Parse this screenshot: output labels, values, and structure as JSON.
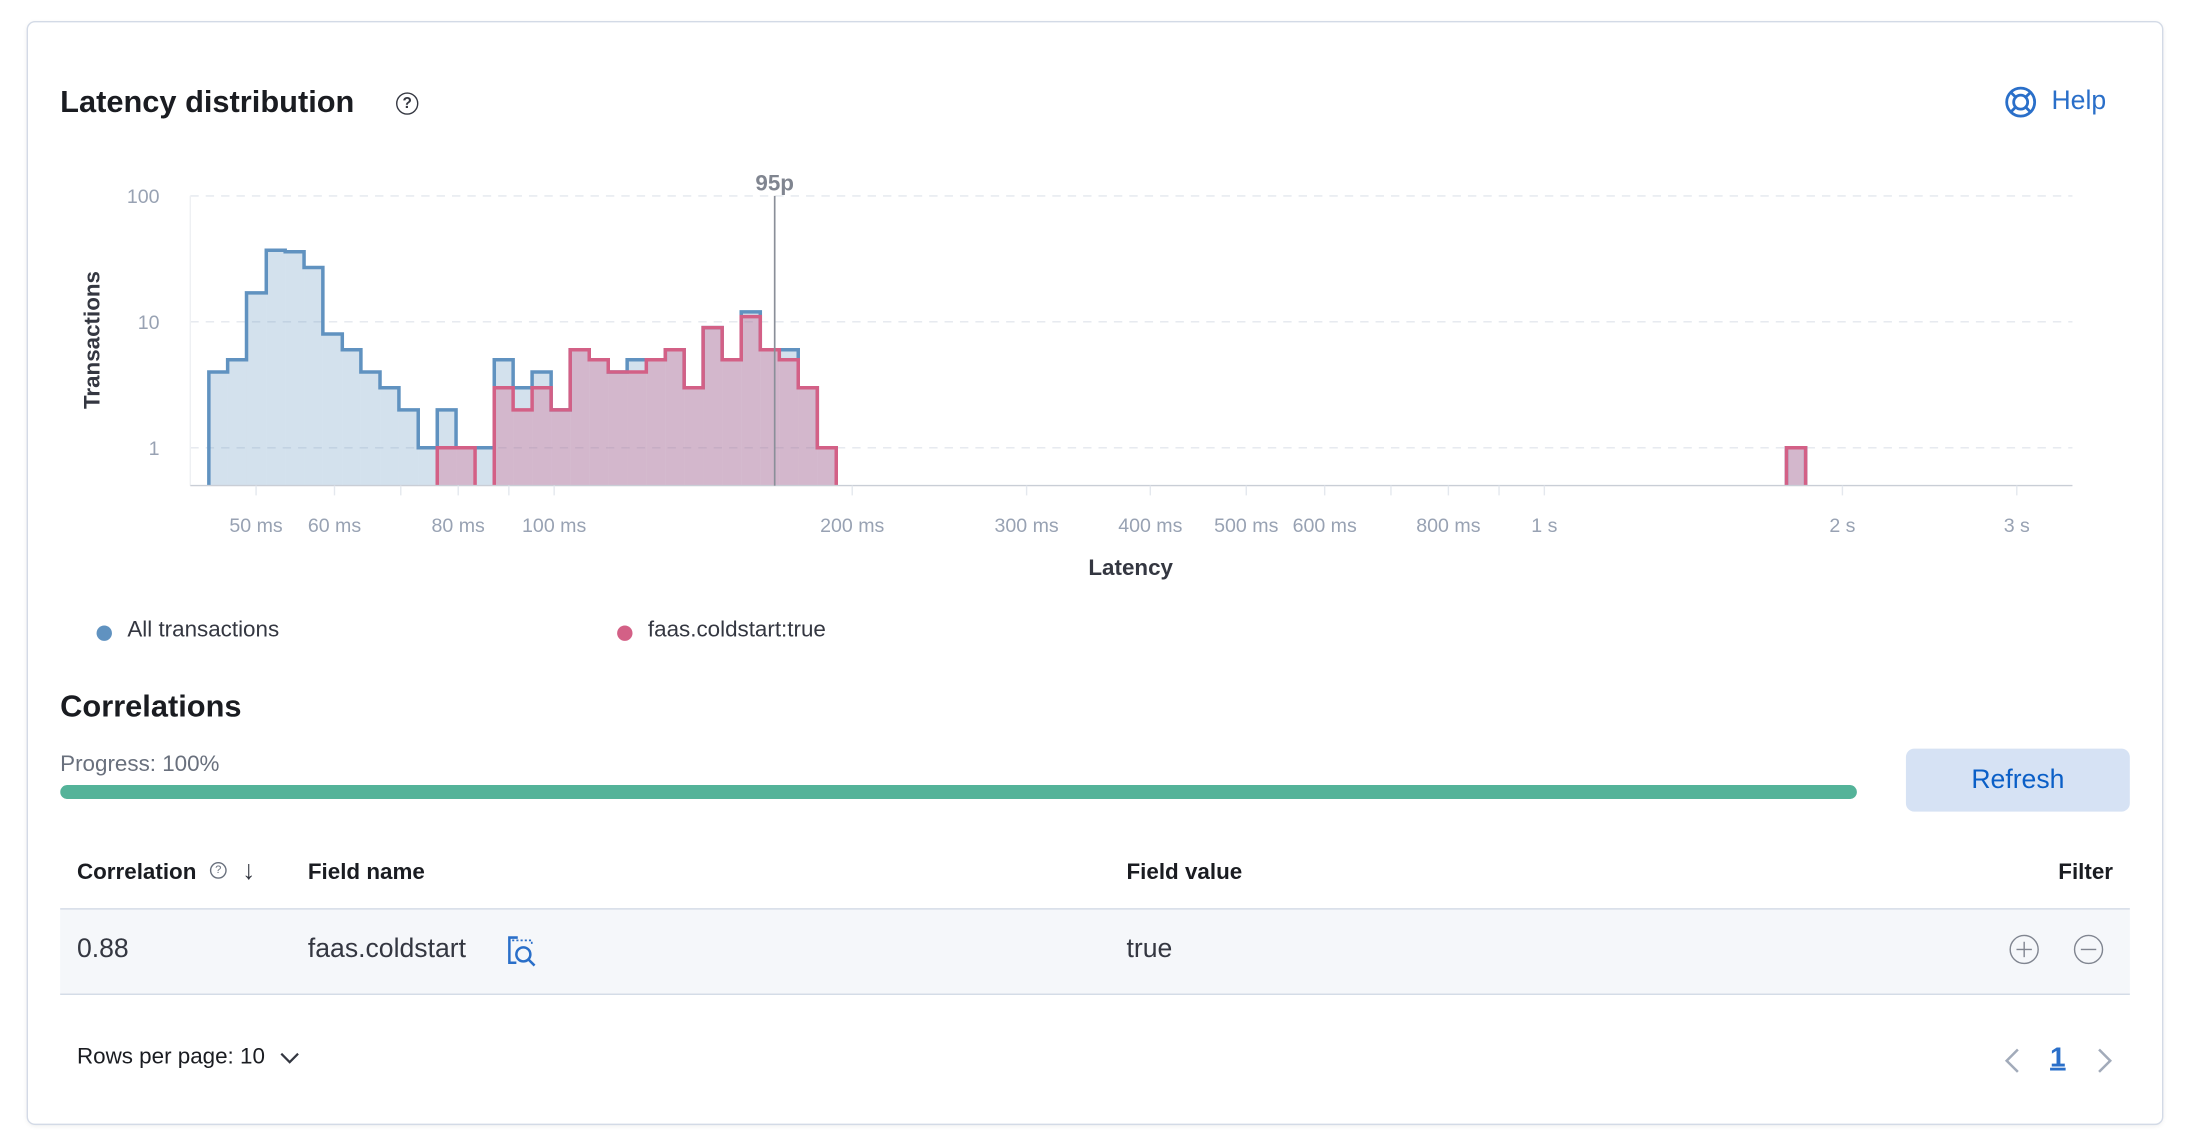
{
  "header": {
    "title": "Latency distribution",
    "help_label": "Help",
    "info_icon": "question-circle-icon",
    "help_icon": "lifebuoy-icon"
  },
  "chart_data": {
    "type": "histogram",
    "xlabel": "Latency",
    "ylabel": "Transactions",
    "x_scale": "log",
    "y_scale": "log",
    "xlim_ms": [
      42.7,
      3410
    ],
    "ylim": [
      0.5,
      100
    ],
    "grid": "horizontal dashed",
    "y_ticks": [
      {
        "value": 100,
        "label": "100"
      },
      {
        "value": 10,
        "label": "10"
      },
      {
        "value": 1,
        "label": "1"
      }
    ],
    "x_ticks": [
      {
        "value": 50,
        "label": "50 ms"
      },
      {
        "value": 60,
        "label": "60 ms"
      },
      {
        "value": 70,
        "label": ""
      },
      {
        "value": 80,
        "label": "80 ms"
      },
      {
        "value": 90,
        "label": ""
      },
      {
        "value": 100,
        "label": "100 ms"
      },
      {
        "value": 200,
        "label": "200 ms"
      },
      {
        "value": 300,
        "label": "300 ms"
      },
      {
        "value": 400,
        "label": "400 ms"
      },
      {
        "value": 500,
        "label": "500 ms"
      },
      {
        "value": 600,
        "label": "600 ms"
      },
      {
        "value": 700,
        "label": ""
      },
      {
        "value": 800,
        "label": "800 ms"
      },
      {
        "value": 900,
        "label": ""
      },
      {
        "value": 1000,
        "label": "1 s"
      },
      {
        "value": 2000,
        "label": "2 s"
      },
      {
        "value": 3000,
        "label": "3 s"
      }
    ],
    "annotation": {
      "label": "95p",
      "value_ms": 167
    },
    "legend_position": "bottom-left",
    "bin_edges_ms": [
      44.8,
      46.8,
      48.9,
      51.2,
      53.5,
      55.9,
      58.4,
      61.1,
      63.8,
      66.7,
      69.7,
      72.9,
      76.2,
      79.6,
      83.2,
      87.0,
      90.9,
      95.0,
      99.3,
      103.8,
      108.5,
      113.4,
      118.5,
      123.9,
      129.5,
      135.3,
      141.4,
      147.8,
      154.5,
      161.5,
      168.8,
      176.4,
      184.4,
      192.7
    ],
    "series": [
      {
        "name": "All transactions",
        "color": "#6092c0",
        "counts": [
          4,
          5,
          17,
          37,
          36,
          27,
          8,
          6,
          4,
          3,
          2,
          1,
          2,
          1,
          1,
          5,
          3,
          4,
          2,
          6,
          5,
          4,
          5,
          5,
          6,
          3,
          9,
          5,
          12,
          6,
          6,
          3,
          1
        ],
        "outlier_bins": [
          {
            "start_ms": 1756,
            "end_ms": 1836,
            "count": 1
          }
        ]
      },
      {
        "name": "faas.coldstart:true",
        "color": "#d36086",
        "counts": [
          0,
          0,
          0,
          0,
          0,
          0,
          0,
          0,
          0,
          0,
          0,
          0,
          1,
          1,
          0,
          3,
          2,
          3,
          2,
          6,
          5,
          4,
          4,
          5,
          6,
          3,
          9,
          5,
          11,
          6,
          5,
          3,
          1
        ],
        "outlier_bins": [
          {
            "start_ms": 1756,
            "end_ms": 1836,
            "count": 1
          }
        ]
      }
    ]
  },
  "correlations": {
    "title": "Correlations",
    "progress_label": "Progress: 100%",
    "progress_percent": 100,
    "progress_color": "#54b399",
    "refresh_label": "Refresh",
    "table": {
      "columns": {
        "correlation": "Correlation",
        "field_name": "Field name",
        "field_value": "Field value",
        "filter": "Filter"
      },
      "sort": "descending",
      "rows": [
        {
          "correlation": "0.88",
          "field_name": "faas.coldstart",
          "field_value": "true"
        }
      ]
    },
    "rows_per_page_label": "Rows per page: 10",
    "current_page": "1"
  }
}
